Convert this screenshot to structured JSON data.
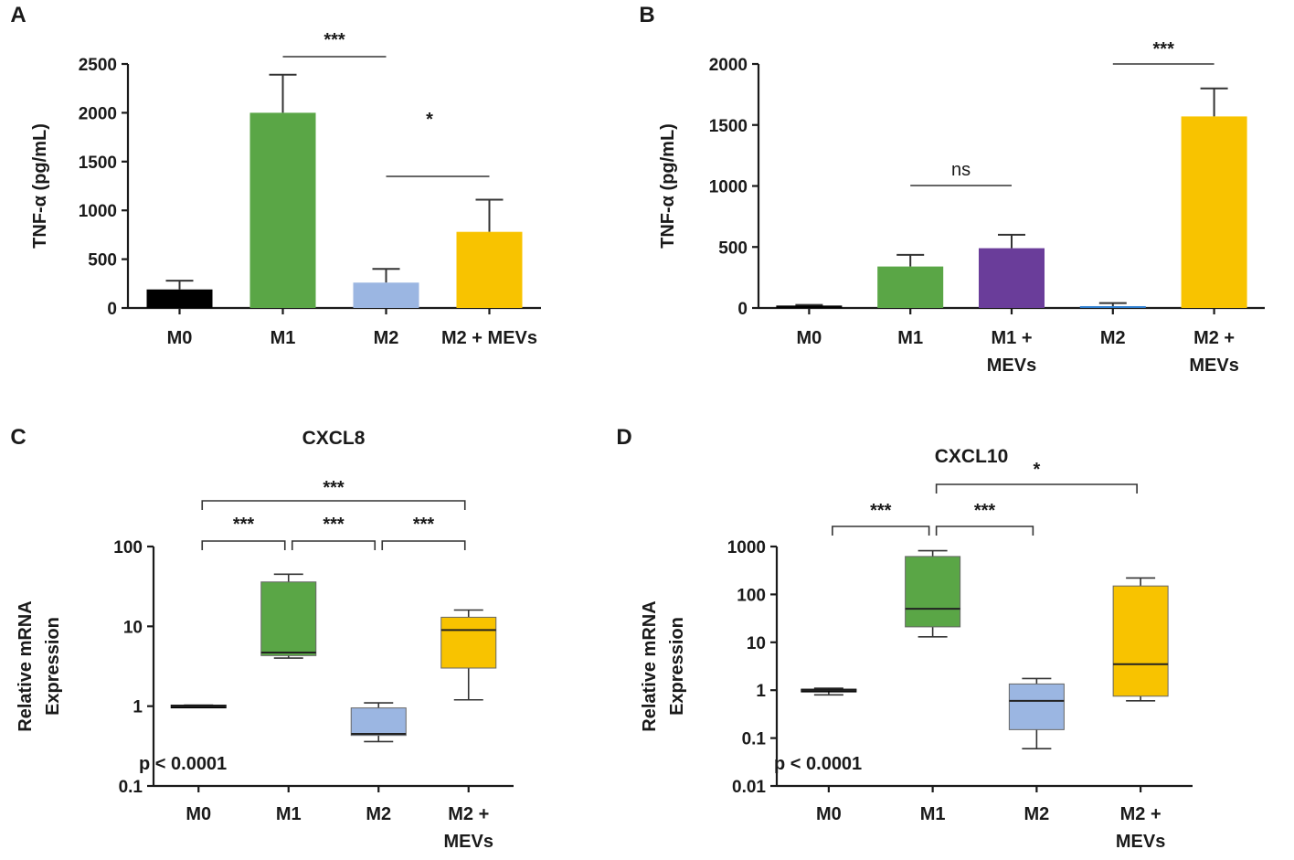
{
  "figure": {
    "panels": [
      "A",
      "B",
      "C",
      "D"
    ]
  },
  "chart_data": [
    {
      "panel": "A",
      "type": "bar",
      "title": "",
      "ylabel": "TNF-α (pg/mL)",
      "ylim": [
        0,
        2500
      ],
      "yticks": [
        "0",
        "500",
        "1000",
        "1500",
        "2000",
        "2500"
      ],
      "categories": [
        "M0",
        "M1",
        "M2",
        "M2 + MEVs"
      ],
      "values": [
        190,
        2000,
        260,
        780
      ],
      "errors": [
        90,
        390,
        140,
        330
      ],
      "colors": [
        "#000000",
        "#5aa646",
        "#9bb6e2",
        "#f8c300"
      ],
      "significance": [
        {
          "from": "M1",
          "to": "M2",
          "label": "***"
        },
        {
          "from": "M2",
          "to": "M2 + MEVs",
          "label": "*"
        }
      ]
    },
    {
      "panel": "B",
      "type": "bar",
      "title": "",
      "ylabel": "TNF-α (pg/mL)",
      "ylim": [
        0,
        2000
      ],
      "yticks": [
        "0",
        "500",
        "1000",
        "1500",
        "2000"
      ],
      "categories": [
        [
          "M0"
        ],
        [
          "M1"
        ],
        [
          "M1 +",
          "MEVs"
        ],
        [
          "M2"
        ],
        [
          "M2 +",
          "MEVs"
        ]
      ],
      "values": [
        20,
        340,
        490,
        15,
        1570
      ],
      "errors": [
        5,
        95,
        110,
        25,
        230
      ],
      "colors": [
        "#000000",
        "#5aa646",
        "#6a3d9a",
        "#2f7fd0",
        "#f8c300"
      ],
      "significance": [
        {
          "from": "M1",
          "to": "M1 + MEVs",
          "label": "ns"
        },
        {
          "from": "M2",
          "to": "M2 + MEVs",
          "label": "***"
        }
      ]
    },
    {
      "panel": "C",
      "type": "box",
      "title": "CXCL8",
      "ylabel": [
        "Relative mRNA",
        "Expression"
      ],
      "yscale": "log",
      "ylim": [
        0.1,
        100
      ],
      "yticks": [
        "0.1",
        "1",
        "10",
        "100"
      ],
      "categories": [
        [
          "M0"
        ],
        [
          "M1"
        ],
        [
          "M2"
        ],
        [
          "M2 +",
          "MEVs"
        ]
      ],
      "boxes": [
        {
          "min": 0.97,
          "q1": 0.97,
          "median": 1.0,
          "q3": 1.03,
          "max": 1.03
        },
        {
          "min": 4.0,
          "q1": 4.3,
          "median": 4.7,
          "q3": 36,
          "max": 45
        },
        {
          "min": 0.36,
          "q1": 0.43,
          "median": 0.45,
          "q3": 0.95,
          "max": 1.1
        },
        {
          "min": 1.2,
          "q1": 3.0,
          "median": 9.0,
          "q3": 13,
          "max": 16
        }
      ],
      "colors": [
        "#000000",
        "#5aa646",
        "#9bb6e2",
        "#f8c300"
      ],
      "pvalue": "p < 0.0001",
      "significance": [
        {
          "from": "M0",
          "to": "M2 + MEVs",
          "label": "***"
        },
        {
          "from": "M0",
          "to": "M1",
          "label": "***"
        },
        {
          "from": "M1",
          "to": "M2",
          "label": "***"
        },
        {
          "from": "M2",
          "to": "M2 + MEVs",
          "label": "***"
        }
      ]
    },
    {
      "panel": "D",
      "type": "box",
      "title": "CXCL10",
      "ylabel": [
        "Relative mRNA",
        "Expression"
      ],
      "yscale": "log",
      "ylim": [
        0.01,
        1000
      ],
      "yticks": [
        "0.01",
        "0.1",
        "1",
        "10",
        "100",
        "1000"
      ],
      "categories": [
        [
          "M0"
        ],
        [
          "M1"
        ],
        [
          "M2"
        ],
        [
          "M2 +",
          "MEVs"
        ]
      ],
      "boxes": [
        {
          "min": 0.8,
          "q1": 0.95,
          "median": 1.0,
          "q3": 1.05,
          "max": 1.1
        },
        {
          "min": 13,
          "q1": 21,
          "median": 50,
          "q3": 620,
          "max": 820
        },
        {
          "min": 0.06,
          "q1": 0.15,
          "median": 0.6,
          "q3": 1.35,
          "max": 1.75
        },
        {
          "min": 0.6,
          "q1": 0.75,
          "median": 3.5,
          "q3": 150,
          "max": 220
        }
      ],
      "colors": [
        "#000000",
        "#5aa646",
        "#9bb6e2",
        "#f8c300"
      ],
      "pvalue": "p < 0.0001",
      "significance": [
        {
          "from": "M0",
          "to": "M1",
          "label": "***"
        },
        {
          "from": "M1",
          "to": "M2",
          "label": "***"
        },
        {
          "from": "M1",
          "to": "M2 + MEVs",
          "label": "*"
        }
      ]
    }
  ]
}
